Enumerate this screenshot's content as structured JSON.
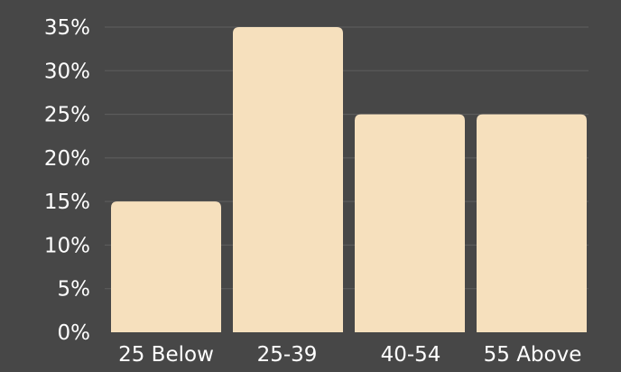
{
  "chart_data": {
    "type": "bar",
    "categories": [
      "25 Below",
      "25-39",
      "40-54",
      "55 Above"
    ],
    "values": [
      15,
      35,
      25,
      25
    ],
    "title": "",
    "xlabel": "",
    "ylabel": "",
    "ylim": [
      0,
      35
    ],
    "yticks": [
      {
        "value": 0,
        "label": "0%"
      },
      {
        "value": 5,
        "label": "5%"
      },
      {
        "value": 10,
        "label": "10%"
      },
      {
        "value": 15,
        "label": "15%"
      },
      {
        "value": 20,
        "label": "20%"
      },
      {
        "value": 25,
        "label": "25%"
      },
      {
        "value": 30,
        "label": "30%"
      },
      {
        "value": 35,
        "label": "35%"
      }
    ],
    "grid": true,
    "legend": "none",
    "colors": {
      "background": "#474747",
      "bar": "#f6e0bd",
      "grid": "#5f5f5f",
      "text": "#ffffff"
    }
  }
}
